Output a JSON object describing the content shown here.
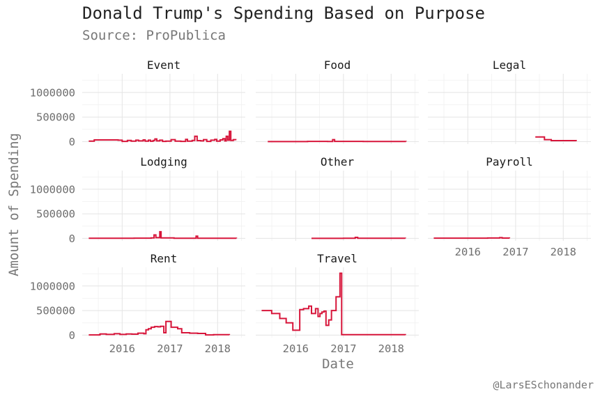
{
  "chart_data": {
    "type": "line",
    "title": "Donald Trump's Spending Based on Purpose",
    "subtitle": "Source: ProPublica",
    "xlabel": "Date",
    "ylabel": "Amount of Spending",
    "caption": "@LarsESchonander",
    "facet_by": "purpose",
    "series_color": "#d7153a",
    "x_range": [
      "2015-03-01",
      "2018-08-01"
    ],
    "x_ticks": [
      "2016-01-01",
      "2017-01-01",
      "2018-01-01"
    ],
    "x_tick_labels": [
      "2016",
      "2017",
      "2018"
    ],
    "ylim": [
      -50000,
      1380000
    ],
    "y_ticks": [
      0,
      500000,
      1000000
    ],
    "y_tick_labels": [
      "0",
      "500000",
      "1000000"
    ],
    "grid": true,
    "panels": [
      {
        "name": "Event",
        "points": [
          [
            "2015-04-20",
            10000
          ],
          [
            "2015-06-01",
            35000
          ],
          [
            "2015-09-01",
            35000
          ],
          [
            "2015-12-01",
            30000
          ],
          [
            "2016-01-01",
            5000
          ],
          [
            "2016-02-10",
            25000
          ],
          [
            "2016-03-10",
            10000
          ],
          [
            "2016-04-15",
            30000
          ],
          [
            "2016-05-05",
            15000
          ],
          [
            "2016-06-10",
            35000
          ],
          [
            "2016-06-25",
            10000
          ],
          [
            "2016-07-20",
            30000
          ],
          [
            "2016-08-05",
            8000
          ],
          [
            "2016-08-25",
            25000
          ],
          [
            "2016-09-08",
            55000
          ],
          [
            "2016-09-22",
            15000
          ],
          [
            "2016-10-15",
            30000
          ],
          [
            "2016-11-05",
            5000
          ],
          [
            "2016-12-01",
            10000
          ],
          [
            "2017-01-10",
            40000
          ],
          [
            "2017-02-10",
            10000
          ],
          [
            "2017-03-25",
            5000
          ],
          [
            "2017-05-01",
            45000
          ],
          [
            "2017-05-15",
            10000
          ],
          [
            "2017-06-20",
            25000
          ],
          [
            "2017-07-10",
            110000
          ],
          [
            "2017-07-28",
            20000
          ],
          [
            "2017-08-25",
            15000
          ],
          [
            "2017-09-15",
            40000
          ],
          [
            "2017-10-10",
            5000
          ],
          [
            "2017-11-10",
            30000
          ],
          [
            "2017-12-10",
            45000
          ],
          [
            "2017-12-25",
            10000
          ],
          [
            "2018-01-20",
            35000
          ],
          [
            "2018-02-10",
            60000
          ],
          [
            "2018-02-25",
            15000
          ],
          [
            "2018-03-08",
            110000
          ],
          [
            "2018-03-20",
            30000
          ],
          [
            "2018-04-01",
            210000
          ],
          [
            "2018-04-12",
            25000
          ],
          [
            "2018-05-01",
            40000
          ],
          [
            "2018-05-20",
            30000
          ]
        ]
      },
      {
        "name": "Food",
        "points": [
          [
            "2015-06-01",
            2000
          ],
          [
            "2016-04-01",
            5000
          ],
          [
            "2016-09-01",
            3000
          ],
          [
            "2016-10-10",
            40000
          ],
          [
            "2016-10-25",
            5000
          ],
          [
            "2017-06-01",
            4000
          ],
          [
            "2018-04-25",
            3000
          ]
        ]
      },
      {
        "name": "Legal",
        "points": [
          [
            "2017-06-01",
            95000
          ],
          [
            "2017-08-10",
            40000
          ],
          [
            "2017-10-01",
            20000
          ],
          [
            "2018-04-10",
            12000
          ]
        ]
      },
      {
        "name": "Lodging",
        "points": [
          [
            "2015-04-20",
            3000
          ],
          [
            "2016-04-01",
            5000
          ],
          [
            "2016-08-10",
            10000
          ],
          [
            "2016-09-01",
            70000
          ],
          [
            "2016-09-15",
            15000
          ],
          [
            "2016-10-15",
            135000
          ],
          [
            "2016-10-25",
            10000
          ],
          [
            "2017-02-01",
            3000
          ],
          [
            "2017-07-20",
            45000
          ],
          [
            "2017-08-01",
            4000
          ],
          [
            "2018-05-25",
            2000
          ]
        ]
      },
      {
        "name": "Other",
        "points": [
          [
            "2016-05-01",
            2000
          ],
          [
            "2017-01-01",
            4000
          ],
          [
            "2017-04-01",
            20000
          ],
          [
            "2017-04-20",
            4000
          ],
          [
            "2018-04-20",
            2000
          ]
        ]
      },
      {
        "name": "Payroll",
        "points": [
          [
            "2015-04-15",
            5000
          ],
          [
            "2016-06-01",
            8000
          ],
          [
            "2016-09-01",
            15000
          ],
          [
            "2016-09-20",
            6000
          ],
          [
            "2016-11-15",
            4000
          ]
        ]
      },
      {
        "name": "Rent",
        "points": [
          [
            "2015-04-20",
            5000
          ],
          [
            "2015-07-15",
            25000
          ],
          [
            "2015-09-01",
            15000
          ],
          [
            "2015-11-01",
            30000
          ],
          [
            "2015-12-15",
            15000
          ],
          [
            "2016-02-01",
            25000
          ],
          [
            "2016-03-15",
            20000
          ],
          [
            "2016-05-01",
            40000
          ],
          [
            "2016-06-15",
            30000
          ],
          [
            "2016-07-01",
            110000
          ],
          [
            "2016-07-20",
            130000
          ],
          [
            "2016-08-10",
            160000
          ],
          [
            "2016-09-05",
            175000
          ],
          [
            "2016-10-01",
            170000
          ],
          [
            "2016-10-20",
            180000
          ],
          [
            "2016-11-15",
            50000
          ],
          [
            "2016-12-01",
            280000
          ],
          [
            "2017-01-10",
            160000
          ],
          [
            "2017-03-01",
            130000
          ],
          [
            "2017-04-01",
            50000
          ],
          [
            "2017-06-01",
            40000
          ],
          [
            "2017-08-01",
            35000
          ],
          [
            "2017-10-01",
            5000
          ],
          [
            "2017-12-01",
            10000
          ],
          [
            "2018-04-01",
            5000
          ]
        ]
      },
      {
        "name": "Travel",
        "points": [
          [
            "2015-04-15",
            500000
          ],
          [
            "2015-07-01",
            440000
          ],
          [
            "2015-09-01",
            340000
          ],
          [
            "2015-10-20",
            250000
          ],
          [
            "2015-12-10",
            100000
          ],
          [
            "2016-02-01",
            520000
          ],
          [
            "2016-03-01",
            540000
          ],
          [
            "2016-04-10",
            590000
          ],
          [
            "2016-05-01",
            440000
          ],
          [
            "2016-06-01",
            540000
          ],
          [
            "2016-06-20",
            380000
          ],
          [
            "2016-07-05",
            440000
          ],
          [
            "2016-07-20",
            470000
          ],
          [
            "2016-08-05",
            490000
          ],
          [
            "2016-08-20",
            200000
          ],
          [
            "2016-09-10",
            310000
          ],
          [
            "2016-10-01",
            500000
          ],
          [
            "2016-11-05",
            780000
          ],
          [
            "2016-12-05",
            1260000
          ],
          [
            "2016-12-18",
            10000
          ],
          [
            "2018-04-20",
            4000
          ]
        ]
      }
    ]
  }
}
